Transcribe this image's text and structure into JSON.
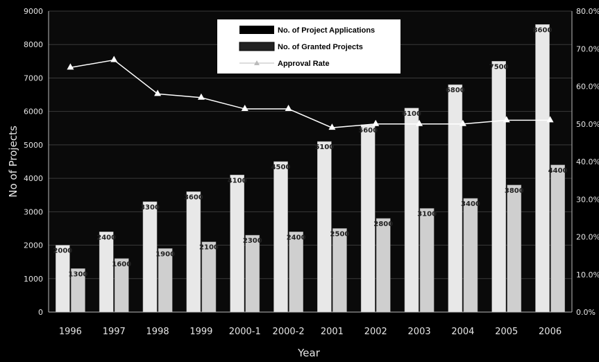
{
  "chart_data": {
    "type": "bar",
    "xlabel": "Year",
    "ylabel": "No of Projects",
    "categories": [
      "1996",
      "1997",
      "1998",
      "1999",
      "2000-1",
      "2000-2",
      "2001",
      "2002",
      "2003",
      "2004",
      "2005",
      "2006"
    ],
    "ylim": [
      0,
      9000
    ],
    "y2lim": [
      0,
      80
    ],
    "yticks": [
      "0",
      "1000",
      "2000",
      "3000",
      "4000",
      "5000",
      "6000",
      "7000",
      "8000",
      "9000"
    ],
    "y2ticks": [
      "0.0%",
      "10.0%",
      "20.0%",
      "30.0%",
      "40.0%",
      "50.0%",
      "60.0%",
      "70.0%",
      "80.0%"
    ],
    "series": [
      {
        "name": "No. of Project Applications",
        "kind": "bar",
        "color": "#e8e8e8",
        "values": [
          2000,
          2400,
          3300,
          3600,
          4100,
          4500,
          5100,
          5600,
          6100,
          6800,
          7500,
          8600
        ]
      },
      {
        "name": "No. of Granted Projects",
        "kind": "bar",
        "color": "#cfcfcf",
        "values": [
          1300,
          1600,
          1900,
          2100,
          2300,
          2400,
          2500,
          2800,
          3100,
          3400,
          3800,
          4400
        ]
      },
      {
        "name": "Approval Rate",
        "kind": "line",
        "axis": "right",
        "color": "#ffffff",
        "values": [
          65,
          67,
          58,
          57,
          54,
          54,
          49,
          50,
          50,
          50,
          51,
          51
        ]
      }
    ],
    "legend_position": "top-center"
  }
}
